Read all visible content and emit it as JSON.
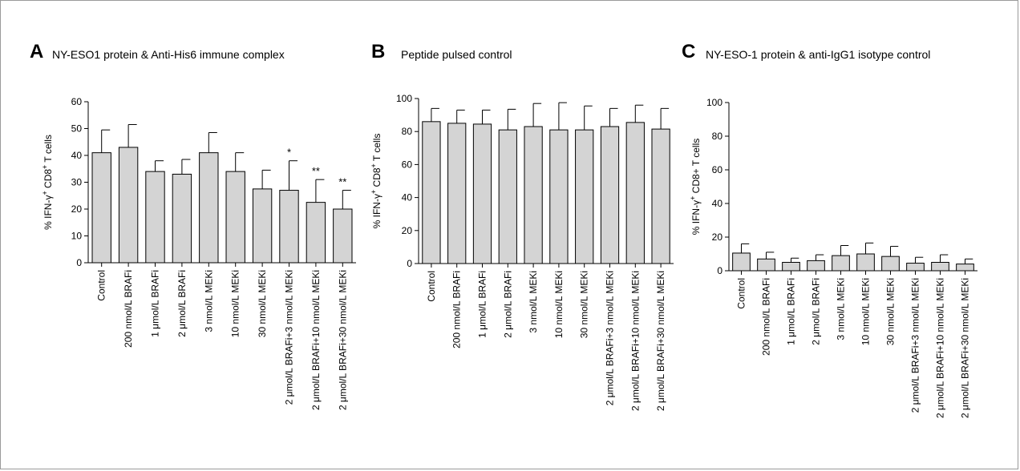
{
  "chart_data": [
    {
      "type": "bar",
      "panel": "A",
      "title": "NY-ESO1 protein & Anti-His6 immune complex",
      "ylabel_html": "% IFN-γ<sup>+</sup> CD8<sup>+</sup> T cells",
      "ylim": [
        0,
        60
      ],
      "yticks": [
        0,
        10,
        20,
        30,
        40,
        50,
        60
      ],
      "categories": [
        "Control",
        "200 nmol/L BRAFi",
        "1 μmol/L BRAFi",
        "2 μmol/L BRAFi",
        "3 nmol/L MEKi",
        "10 nmol/L MEKi",
        "30 nmol/L MEKi",
        "2 μmol/L BRAFi+3 nmol/L MEKi",
        "2 μmol/L BRAFi+10 nmol/L MEKi",
        "2 μmol/L BRAFi+30 nmol/L MEKi"
      ],
      "values": [
        41,
        43,
        34,
        33,
        41,
        34,
        27.5,
        27,
        22.5,
        20
      ],
      "errors": [
        8.5,
        8.5,
        4,
        5.5,
        7.5,
        7,
        7,
        11,
        8.5,
        7
      ],
      "significance": [
        "",
        "",
        "",
        "",
        "",
        "",
        "",
        "*",
        "**",
        "**"
      ],
      "grid": false,
      "bar_color": "#d4d4d4"
    },
    {
      "type": "bar",
      "panel": "B",
      "title": "Peptide pulsed control",
      "ylabel_html": "% IFN-γ<sup>+</sup> CD8<sup>+</sup> T cells",
      "ylim": [
        0,
        100
      ],
      "yticks": [
        0,
        20,
        40,
        60,
        80,
        100
      ],
      "categories": [
        "Control",
        "200 nmol/L BRAFi",
        "1 μmol/L BRAFi",
        "2 μmol/L BRAFi",
        "3 nmol/L MEKi",
        "10 nmol/L MEKi",
        "30 nmol/L MEKi",
        "2 μmol/L BRAFi+3 nmol/L MEKi",
        "2 μmol/L BRAFi+10 nmol/L MEKi",
        "2 μmol/L BRAFi+30 nmol/L MEKi"
      ],
      "values": [
        86,
        85,
        84.5,
        81,
        83,
        81,
        81,
        83,
        85.5,
        81.5
      ],
      "errors": [
        8,
        8,
        8.5,
        12.5,
        14,
        16.5,
        14.5,
        11,
        10.5,
        12.5
      ],
      "significance": [
        "",
        "",
        "",
        "",
        "",
        "",
        "",
        "",
        "",
        ""
      ],
      "grid": false,
      "bar_color": "#d4d4d4"
    },
    {
      "type": "bar",
      "panel": "C",
      "title": "NY-ESO-1 protein & anti-IgG1 isotype control",
      "ylabel_html": "% IFN-γ<sup>+</sup> CD8+ T cells",
      "ylim": [
        0,
        100
      ],
      "yticks": [
        0,
        20,
        40,
        60,
        80,
        100
      ],
      "categories": [
        "Control",
        "200 nmol/L BRAFi",
        "1 μmol/L BRAFi",
        "2 μmol/L BRAFi",
        "3 nmol/L MEKi",
        "10 nmol/L MEKi",
        "30 nmol/L MEKi",
        "2 μmol/L BRAFi+3 nmol/L MEKi",
        "2 μmol/L BRAFi+10 nmol/L MEKi",
        "2 μmol/L BRAFi+30 nmol/L MEKi"
      ],
      "values": [
        10.5,
        7,
        5,
        6,
        9,
        10,
        8.5,
        4.5,
        5,
        4
      ],
      "errors": [
        5.5,
        4,
        2.5,
        3.5,
        6,
        6.5,
        6,
        3.5,
        4.5,
        3
      ],
      "significance": [
        "",
        "",
        "",
        "",
        "",
        "",
        "",
        "",
        "",
        ""
      ],
      "grid": false,
      "bar_color": "#d4d4d4"
    }
  ]
}
